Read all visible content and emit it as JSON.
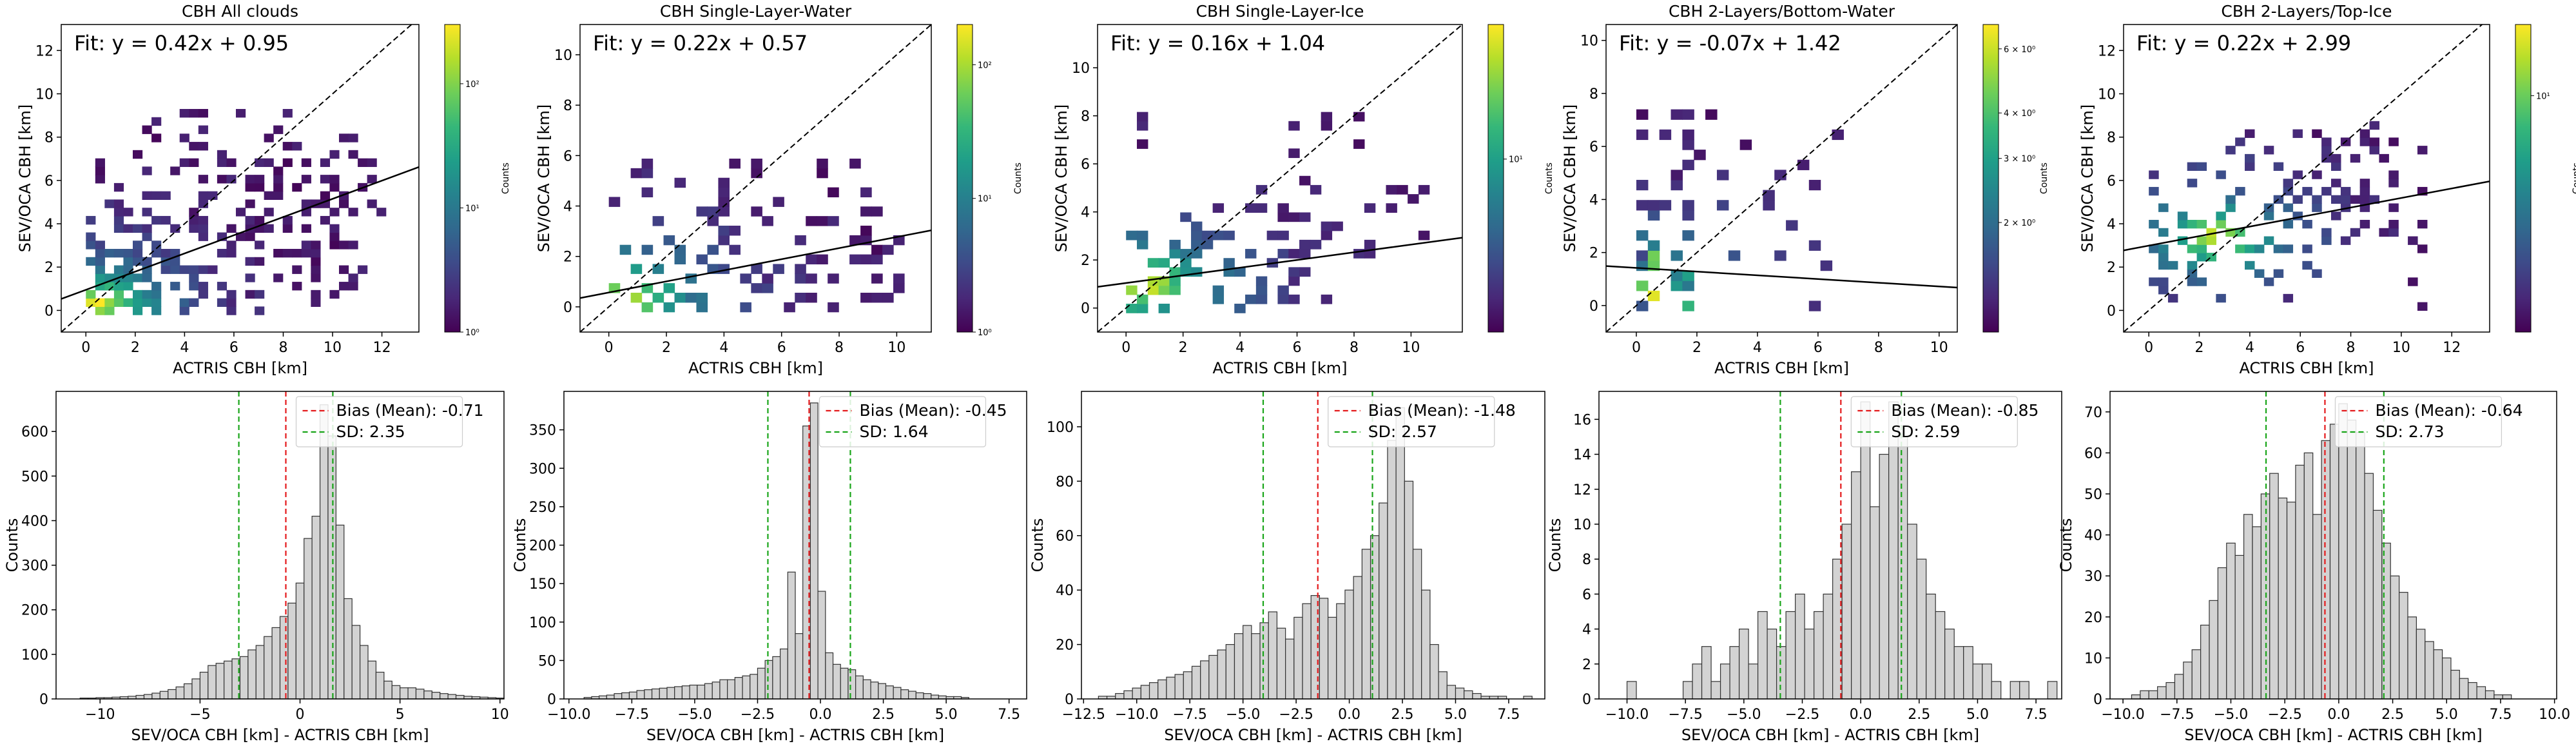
{
  "colors": {
    "viridis": [
      "#440154",
      "#482878",
      "#3e4a89",
      "#31688e",
      "#26828e",
      "#1f9e89",
      "#35b779",
      "#6ece58",
      "#b5de2b",
      "#fde725"
    ],
    "bias_line": "#e41a1c",
    "sd_line": "#19a519",
    "hist_fill": "#d3d3d3",
    "hist_edge": "#333333"
  },
  "chart_data": [
    {
      "type": "heatmap",
      "title": "CBH All clouds",
      "xlabel": "ACTRIS CBH [km]",
      "ylabel": "SEV/OCA CBH [km]",
      "fit_label": "Fit: y = 0.42x + 0.95",
      "fit": {
        "slope": 0.42,
        "intercept": 0.95
      },
      "identity_line": true,
      "xlim": [
        -1,
        13.5
      ],
      "ylim": [
        -1,
        13.2
      ],
      "xticks": [
        0,
        2,
        4,
        6,
        8,
        10,
        12
      ],
      "yticks": [
        0,
        2,
        4,
        6,
        8,
        10,
        12
      ],
      "xtick_labels": [
        "0",
        "2",
        "4",
        "6",
        "8",
        "10",
        "12"
      ],
      "ytick_labels": [
        "0",
        "2",
        "4",
        "6",
        "8",
        "10",
        "12"
      ],
      "colorbar": {
        "label": "Counts",
        "scale": "log",
        "ticks": [
          1,
          10,
          100
        ],
        "tick_labels": [
          "10⁰",
          "10¹",
          "10²"
        ],
        "range": [
          1,
          300
        ]
      },
      "region": {
        "x": [
          0,
          12
        ],
        "y": [
          -0.2,
          9
        ],
        "peak": [
          0.3,
          0.1
        ],
        "xmax_band": 12,
        "density": "high",
        "seed": 11
      }
    },
    {
      "type": "heatmap",
      "title": "CBH Single-Layer-Water",
      "xlabel": "ACTRIS CBH [km]",
      "ylabel": "SEV/OCA CBH [km]",
      "fit_label": "Fit: y = 0.22x + 0.57",
      "fit": {
        "slope": 0.22,
        "intercept": 0.57
      },
      "identity_line": true,
      "xlim": [
        -1,
        11.2
      ],
      "ylim": [
        -1,
        11.2
      ],
      "xticks": [
        0,
        2,
        4,
        6,
        8,
        10
      ],
      "yticks": [
        0,
        2,
        4,
        6,
        8,
        10
      ],
      "xtick_labels": [
        "0",
        "2",
        "4",
        "6",
        "8",
        "10"
      ],
      "ytick_labels": [
        "0",
        "2",
        "4",
        "6",
        "8",
        "10"
      ],
      "colorbar": {
        "label": "Counts",
        "scale": "log",
        "ticks": [
          1,
          10,
          100
        ],
        "tick_labels": [
          "10⁰",
          "10¹",
          "10²"
        ],
        "range": [
          1,
          200
        ]
      },
      "region": {
        "x": [
          0,
          10
        ],
        "y": [
          -0.2,
          5.5
        ],
        "peak": [
          0.3,
          0.2
        ],
        "density": "medium",
        "seed": 23
      }
    },
    {
      "type": "heatmap",
      "title": "CBH Single-Layer-Ice",
      "xlabel": "ACTRIS CBH [km]",
      "ylabel": "SEV/OCA CBH [km]",
      "fit_label": "Fit: y = 0.16x + 1.04",
      "fit": {
        "slope": 0.16,
        "intercept": 1.04
      },
      "identity_line": true,
      "xlim": [
        -1,
        11.8
      ],
      "ylim": [
        -1,
        11.8
      ],
      "xticks": [
        0,
        2,
        4,
        6,
        8,
        10
      ],
      "yticks": [
        0,
        2,
        4,
        6,
        8,
        10
      ],
      "xtick_labels": [
        "0",
        "2",
        "4",
        "6",
        "8",
        "10"
      ],
      "ytick_labels": [
        "0",
        "2",
        "4",
        "6",
        "8",
        "10"
      ],
      "colorbar": {
        "label": "Counts",
        "scale": "log",
        "ticks": [
          10
        ],
        "tick_labels": [
          "10¹"
        ],
        "range": [
          1,
          60
        ]
      },
      "region": {
        "x": [
          0,
          10.5
        ],
        "y": [
          -0.2,
          8
        ],
        "peak": [
          0.5,
          0.8
        ],
        "density": "medium",
        "seed": 37
      }
    },
    {
      "type": "heatmap",
      "title": "CBH 2-Layers/Bottom-Water",
      "xlabel": "ACTRIS CBH [km]",
      "ylabel": "SEV/OCA CBH [km]",
      "fit_label": "Fit: y = -0.07x + 1.42",
      "fit": {
        "slope": -0.07,
        "intercept": 1.42
      },
      "identity_line": true,
      "xlim": [
        -1,
        10.6
      ],
      "ylim": [
        -1,
        10.6
      ],
      "xticks": [
        0,
        2,
        4,
        6,
        8,
        10
      ],
      "yticks": [
        0,
        2,
        4,
        6,
        8,
        10
      ],
      "xtick_labels": [
        "0",
        "2",
        "4",
        "6",
        "8",
        "10"
      ],
      "ytick_labels": [
        "0",
        "2",
        "4",
        "6",
        "8",
        "10"
      ],
      "colorbar": {
        "label": "Counts",
        "scale": "log",
        "ticks": [
          2,
          3,
          4,
          6
        ],
        "tick_labels": [
          "2 × 10⁰",
          "3 × 10⁰",
          "4 × 10⁰",
          "6 × 10⁰"
        ],
        "range": [
          1,
          7
        ]
      },
      "region": {
        "x": [
          0,
          6.5
        ],
        "y": [
          -0.2,
          7.5
        ],
        "peak": [
          0.3,
          0.5
        ],
        "density": "sparse",
        "seed": 53
      }
    },
    {
      "type": "heatmap",
      "title": "CBH 2-Layers/Top-Ice",
      "xlabel": "ACTRIS CBH [km]",
      "ylabel": "SEV/OCA CBH [km]",
      "fit_label": "Fit: y = 0.22x + 2.99",
      "fit": {
        "slope": 0.22,
        "intercept": 2.99
      },
      "identity_line": true,
      "xlim": [
        -1,
        13.5
      ],
      "ylim": [
        -1,
        13.2
      ],
      "xticks": [
        0,
        2,
        4,
        6,
        8,
        10,
        12
      ],
      "yticks": [
        0,
        2,
        4,
        6,
        8,
        10,
        12
      ],
      "xtick_labels": [
        "0",
        "2",
        "4",
        "6",
        "8",
        "10",
        "12"
      ],
      "ytick_labels": [
        "0",
        "2",
        "4",
        "6",
        "8",
        "10",
        "12"
      ],
      "colorbar": {
        "label": "Counts",
        "scale": "log",
        "ticks": [
          10
        ],
        "tick_labels": [
          "10¹"
        ],
        "range": [
          1,
          20
        ]
      },
      "region": {
        "x": [
          0,
          11
        ],
        "y": [
          0,
          8.5
        ],
        "peak": [
          2.5,
          3.2
        ],
        "density": "medium",
        "seed": 71
      }
    },
    {
      "type": "bar",
      "subtype": "histogram",
      "xlabel": "SEV/OCA CBH [km] - ACTRIS CBH [km]",
      "ylabel": "Counts",
      "xlim": [
        -12.2,
        10.2
      ],
      "ylim": [
        0,
        690
      ],
      "xticks": [
        -10,
        -5,
        0,
        5,
        10
      ],
      "yticks": [
        0,
        100,
        200,
        300,
        400,
        500,
        600
      ],
      "xtick_labels": [
        "−10",
        "−5",
        "0",
        "5",
        "10"
      ],
      "ytick_labels": [
        "0",
        "100",
        "200",
        "300",
        "400",
        "500",
        "600"
      ],
      "bias": -0.71,
      "sd": 2.35,
      "legend": [
        "Bias (Mean): -0.71",
        "SD: 2.35"
      ],
      "bins": {
        "start": -11,
        "width": 0.4
      },
      "values": [
        2,
        2,
        3,
        3,
        4,
        5,
        6,
        8,
        10,
        13,
        17,
        21,
        27,
        34,
        45,
        60,
        75,
        80,
        85,
        90,
        95,
        110,
        120,
        140,
        160,
        185,
        215,
        260,
        360,
        410,
        660,
        590,
        390,
        225,
        165,
        120,
        85,
        60,
        40,
        30,
        25,
        25,
        22,
        18,
        15,
        12,
        10,
        8,
        6,
        5,
        4,
        3,
        2
      ]
    },
    {
      "type": "bar",
      "subtype": "histogram",
      "xlabel": "SEV/OCA CBH [km] - ACTRIS CBH [km]",
      "ylabel": "Counts",
      "xlim": [
        -10.2,
        8.2
      ],
      "ylim": [
        0,
        400
      ],
      "xticks": [
        -10,
        -7.5,
        -5,
        -2.5,
        0,
        2.5,
        5,
        7.5
      ],
      "yticks": [
        0,
        50,
        100,
        150,
        200,
        250,
        300,
        350
      ],
      "xtick_labels": [
        "−10.0",
        "−7.5",
        "−5.0",
        "−2.5",
        "0.0",
        "2.5",
        "5.0",
        "7.5"
      ],
      "ytick_labels": [
        "0",
        "50",
        "100",
        "150",
        "200",
        "250",
        "300",
        "350"
      ],
      "bias": -0.45,
      "sd": 1.64,
      "legend": [
        "Bias (Mean): -0.45",
        "SD: 1.64"
      ],
      "bins": {
        "start": -9.4,
        "width": 0.3
      },
      "values": [
        2,
        3,
        4,
        5,
        7,
        8,
        9,
        11,
        12,
        13,
        14,
        15,
        16,
        17,
        18,
        18,
        20,
        22,
        25,
        25,
        28,
        30,
        32,
        40,
        50,
        55,
        65,
        165,
        85,
        355,
        385,
        140,
        60,
        45,
        40,
        38,
        30,
        25,
        22,
        20,
        17,
        15,
        12,
        10,
        8,
        7,
        5,
        4,
        3,
        3,
        2
      ]
    },
    {
      "type": "bar",
      "subtype": "histogram",
      "xlabel": "SEV/OCA CBH [km] - ACTRIS CBH [km]",
      "ylabel": "Counts",
      "xlim": [
        -12.6,
        9.2
      ],
      "ylim": [
        0,
        113
      ],
      "xticks": [
        -12.5,
        -10,
        -7.5,
        -5,
        -2.5,
        0,
        2.5,
        5,
        7.5
      ],
      "yticks": [
        0,
        20,
        40,
        60,
        80,
        100
      ],
      "xtick_labels": [
        "−12.5",
        "−10.0",
        "−7.5",
        "−5.0",
        "−2.5",
        "0.0",
        "2.5",
        "5.0",
        "7.5"
      ],
      "ytick_labels": [
        "0",
        "20",
        "40",
        "60",
        "80",
        "100"
      ],
      "bias": -1.48,
      "sd": 2.57,
      "legend": [
        "Bias (Mean): -1.48",
        "SD: 2.57"
      ],
      "bins": {
        "start": -11.8,
        "width": 0.4
      },
      "values": [
        1,
        1,
        2,
        3,
        4,
        5,
        6,
        7,
        8,
        9,
        10,
        12,
        14,
        16,
        18,
        20,
        24,
        27,
        24,
        28,
        32,
        26,
        22,
        30,
        35,
        38,
        37,
        30,
        35,
        40,
        45,
        55,
        60,
        72,
        95,
        107,
        80,
        55,
        40,
        20,
        10,
        5,
        4,
        3,
        2,
        1,
        1,
        1,
        0,
        0,
        1
      ]
    },
    {
      "type": "bar",
      "subtype": "histogram",
      "xlabel": "SEV/OCA CBH [km] - ACTRIS CBH [km]",
      "ylabel": "Counts",
      "xlim": [
        -11.2,
        8.6
      ],
      "ylim": [
        0,
        17.6
      ],
      "xticks": [
        -10,
        -7.5,
        -5,
        -2.5,
        0,
        2.5,
        5,
        7.5
      ],
      "yticks": [
        0,
        2,
        4,
        6,
        8,
        10,
        12,
        14,
        16
      ],
      "xtick_labels": [
        "−10.0",
        "−7.5",
        "−5.0",
        "−2.5",
        "0.0",
        "2.5",
        "5.0",
        "7.5"
      ],
      "ytick_labels": [
        "0",
        "2",
        "4",
        "6",
        "8",
        "10",
        "12",
        "14",
        "16"
      ],
      "bias": -0.85,
      "sd": 2.59,
      "legend": [
        "Bias (Mean): -0.85",
        "SD: 2.59"
      ],
      "bins": {
        "start": -10.0,
        "width": 0.4
      },
      "values": [
        1,
        0,
        0,
        0,
        0,
        0,
        1,
        2,
        3,
        1,
        2,
        3,
        4,
        2,
        5,
        4,
        3,
        5,
        6,
        4,
        5,
        6,
        8,
        10,
        13,
        17,
        11,
        14,
        17,
        15,
        10,
        8,
        6,
        5,
        4,
        3,
        3,
        2,
        2,
        1,
        0,
        1,
        1,
        0,
        0,
        1
      ]
    },
    {
      "type": "bar",
      "subtype": "histogram",
      "xlabel": "SEV/OCA CBH [km] - ACTRIS CBH [km]",
      "ylabel": "Counts",
      "xlim": [
        -10.6,
        10.1
      ],
      "ylim": [
        0,
        75
      ],
      "xticks": [
        -10,
        -7.5,
        -5,
        -2.5,
        0,
        2.5,
        5,
        7.5,
        10
      ],
      "yticks": [
        0,
        10,
        20,
        30,
        40,
        50,
        60,
        70
      ],
      "xtick_labels": [
        "−10.0",
        "−7.5",
        "−5.0",
        "−2.5",
        "0.0",
        "2.5",
        "5.0",
        "7.5",
        "10.0"
      ],
      "ytick_labels": [
        "0",
        "10",
        "20",
        "30",
        "40",
        "50",
        "60",
        "70"
      ],
      "bias": -0.64,
      "sd": 2.73,
      "legend": [
        "Bias (Mean): -0.64",
        "SD: 2.73"
      ],
      "bins": {
        "start": -9.6,
        "width": 0.4
      },
      "values": [
        1,
        2,
        2,
        3,
        4,
        6,
        9,
        12,
        18,
        24,
        32,
        38,
        35,
        45,
        42,
        50,
        55,
        49,
        48,
        57,
        60,
        45,
        63,
        67,
        72,
        68,
        65,
        55,
        46,
        38,
        30,
        26,
        20,
        17,
        14,
        12,
        10,
        7,
        5,
        4,
        3,
        2,
        1,
        1
      ]
    }
  ]
}
